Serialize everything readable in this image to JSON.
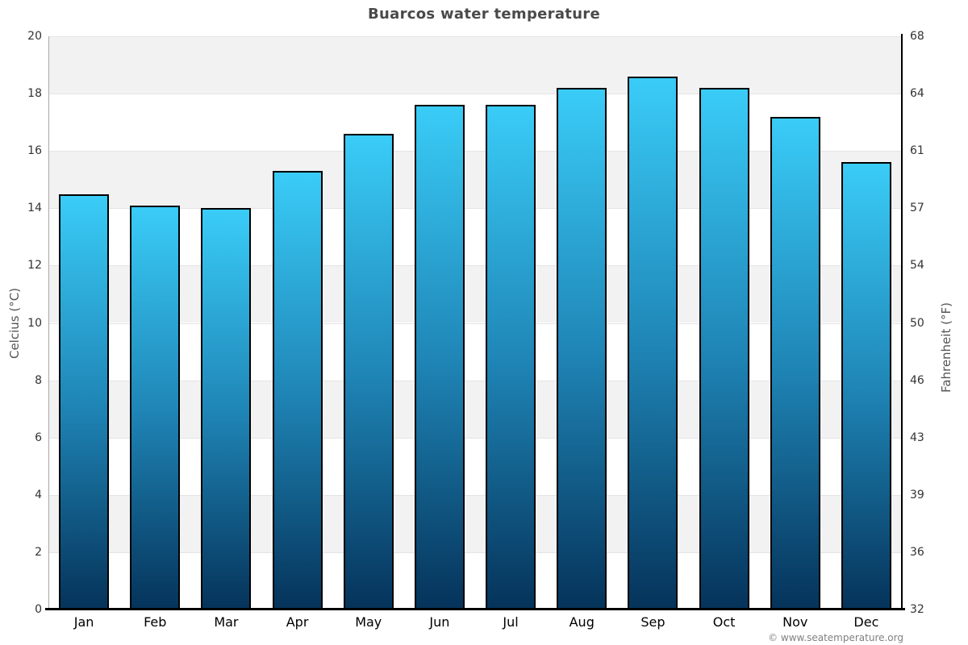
{
  "title": "Buarcos water temperature",
  "footer": "© www.seatemperature.org",
  "axes": {
    "left_label": "Celcius (°C)",
    "right_label": "Fahrenheit (°F)",
    "left_ticks": [
      20,
      18,
      16,
      14,
      12,
      10,
      8,
      6,
      4,
      2,
      0
    ],
    "right_ticks": [
      68,
      64,
      61,
      57,
      54,
      50,
      46,
      43,
      39,
      36,
      32
    ]
  },
  "colors": {
    "bar_top": "#3accf7",
    "bar_mid": "#1f86b7",
    "bar_bottom": "#05335a",
    "bar_border": "#000000",
    "band_gray": "#f2f2f2",
    "band_white": "#ffffff",
    "title_text": "#4a4a4a"
  },
  "chart_data": {
    "type": "bar",
    "title": "Buarcos water temperature",
    "categories": [
      "Jan",
      "Feb",
      "Mar",
      "Apr",
      "May",
      "Jun",
      "Jul",
      "Aug",
      "Sep",
      "Oct",
      "Nov",
      "Dec"
    ],
    "values": [
      14.5,
      14.1,
      14.0,
      15.3,
      16.6,
      17.6,
      17.6,
      18.2,
      18.6,
      18.2,
      17.2,
      15.6
    ],
    "xlabel": "",
    "ylabel": "Celcius (°C)",
    "ylabel_right": "Fahrenheit (°F)",
    "ylim": [
      0,
      20
    ],
    "grid": "horizontal-bands",
    "legend": "none"
  }
}
